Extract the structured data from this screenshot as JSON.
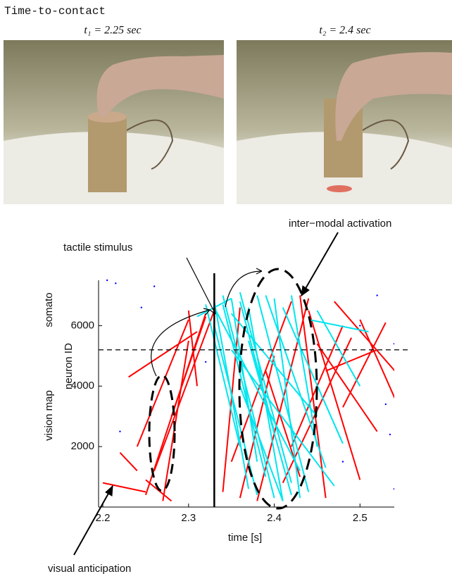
{
  "figure_title": "Time-to-contact",
  "photos": [
    {
      "caption": "t₁ = 2.25 sec"
    },
    {
      "caption": "t₂ = 2.4 sec"
    }
  ],
  "chart_data": {
    "type": "line",
    "xlabel": "time [s]",
    "ylabel": "neuron ID",
    "ylabel_regions": [
      "somato",
      "vision map"
    ],
    "annotations": [
      "tactile stimulus",
      "inter−modal activation",
      "visual anticipation"
    ],
    "xlim": [
      2.195,
      2.54
    ],
    "ylim": [
      0,
      7500
    ],
    "xticks": [
      2.2,
      2.3,
      2.4,
      2.5
    ],
    "yticks": [
      2000,
      4000,
      6000
    ],
    "vline": 2.33,
    "hline": 5200,
    "series": [
      {
        "type": "line",
        "color": "#ff0000",
        "x": [
          2.2,
          2.25,
          null,
          2.24,
          2.3,
          null,
          2.25,
          2.32,
          null,
          2.26,
          2.33,
          null,
          2.23,
          2.31,
          null,
          2.27,
          2.3,
          null,
          2.25,
          2.28,
          null,
          2.28,
          2.32,
          null,
          2.34,
          2.36,
          null,
          2.35,
          2.42,
          null,
          2.36,
          2.4,
          null,
          2.43,
          2.46,
          null,
          2.44,
          2.5,
          null,
          2.45,
          2.52,
          null,
          2.47,
          2.55,
          null,
          2.46,
          2.52,
          null,
          2.42,
          2.48,
          null,
          2.5,
          2.55,
          null,
          2.41,
          2.49,
          null,
          2.38,
          2.44,
          null,
          2.48,
          2.53,
          null,
          2.3,
          2.31,
          null,
          2.22,
          2.24,
          null,
          2.39,
          2.43
        ],
        "values": [
          800,
          500,
          null,
          2000,
          6200,
          null,
          400,
          6400,
          null,
          1200,
          6500,
          null,
          4300,
          5800,
          null,
          200,
          5500,
          null,
          900,
          200,
          null,
          3000,
          6300,
          null,
          500,
          6600,
          null,
          1500,
          6800,
          null,
          300,
          5000,
          null,
          7000,
          300,
          null,
          6500,
          900,
          null,
          5400,
          2500,
          null,
          6800,
          4200,
          null,
          4500,
          5200,
          null,
          2000,
          6000,
          null,
          6200,
          3000,
          null,
          800,
          5600,
          null,
          200,
          6900,
          null,
          3300,
          6100,
          null,
          6500,
          4000,
          null,
          1800,
          1200,
          null,
          4500,
          1000
        ]
      },
      {
        "type": "line",
        "color": "#00e5ee",
        "x": [
          2.33,
          2.37,
          null,
          2.34,
          2.4,
          null,
          2.35,
          2.38,
          null,
          2.36,
          2.42,
          null,
          2.37,
          2.41,
          null,
          2.33,
          2.43,
          null,
          2.32,
          2.36,
          null,
          2.38,
          2.44,
          null,
          2.35,
          2.45,
          null,
          2.34,
          2.39,
          null,
          2.36,
          2.4,
          null,
          2.4,
          2.43,
          null,
          2.39,
          2.46,
          null,
          2.31,
          2.35,
          null,
          2.35,
          2.47,
          null,
          2.41,
          2.48,
          null,
          2.44,
          2.51,
          null,
          2.37,
          2.42,
          null,
          2.33,
          2.38,
          null,
          2.42,
          2.45,
          null,
          2.45,
          2.5,
          null,
          2.36,
          2.41
        ],
        "values": [
          6800,
          600,
          null,
          7000,
          300,
          null,
          6900,
          1500,
          null,
          7100,
          800,
          null,
          6600,
          200,
          null,
          6600,
          1200,
          null,
          6700,
          2000,
          null,
          7000,
          500,
          null,
          6400,
          3000,
          null,
          6700,
          1000,
          null,
          6800,
          2500,
          null,
          6900,
          300,
          null,
          7000,
          1300,
          null,
          6300,
          6900,
          null,
          5200,
          700,
          null,
          6600,
          2100,
          null,
          6200,
          5800,
          null,
          5500,
          400,
          null,
          6000,
          400,
          null,
          7000,
          2000,
          null,
          6500,
          4000,
          null,
          4000,
          200
        ]
      },
      {
        "type": "scatter",
        "color": "#0000ff",
        "x": [
          2.215,
          2.22,
          2.245,
          2.26,
          2.54,
          2.53,
          2.54,
          2.52,
          2.535,
          2.32,
          2.5,
          2.48,
          2.205
        ],
        "values": [
          7400,
          2500,
          6600,
          7300,
          5400,
          3400,
          600,
          7000,
          2400,
          4800,
          6000,
          1500,
          7500
        ]
      }
    ]
  }
}
